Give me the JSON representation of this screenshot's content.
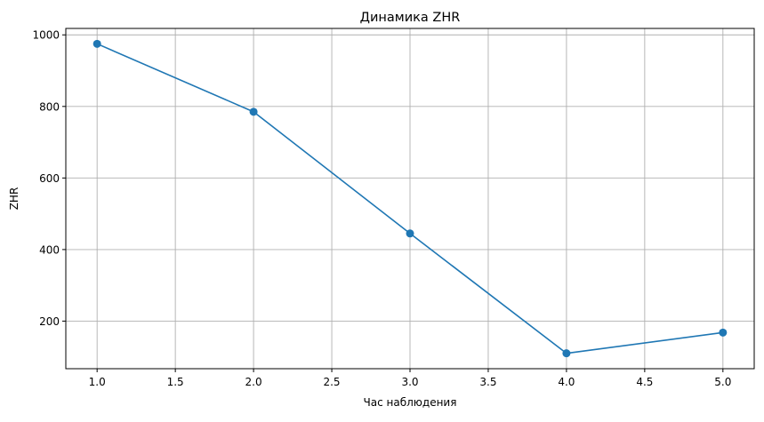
{
  "chart_data": {
    "type": "line",
    "title": "Динамика ZHR",
    "xlabel": "Час наблюдения",
    "ylabel": "ZHR",
    "x": [
      1.0,
      2.0,
      3.0,
      4.0,
      5.0
    ],
    "series": [
      {
        "values": [
          975,
          785,
          445,
          110,
          168
        ],
        "color": "#1f77b4",
        "marker": "circle"
      }
    ],
    "xlim": [
      0.8,
      5.2
    ],
    "ylim": [
      67,
      1018
    ],
    "xticks": [
      1.0,
      1.5,
      2.0,
      2.5,
      3.0,
      3.5,
      4.0,
      4.5,
      5.0
    ],
    "xtick_labels": [
      "1.0",
      "1.5",
      "2.0",
      "2.5",
      "3.0",
      "3.5",
      "4.0",
      "4.5",
      "5.0"
    ],
    "yticks": [
      200,
      400,
      600,
      800,
      1000
    ],
    "ytick_labels": [
      "200",
      "400",
      "600",
      "800",
      "1000"
    ],
    "grid": true,
    "grid_color": "#b0b0b0"
  }
}
